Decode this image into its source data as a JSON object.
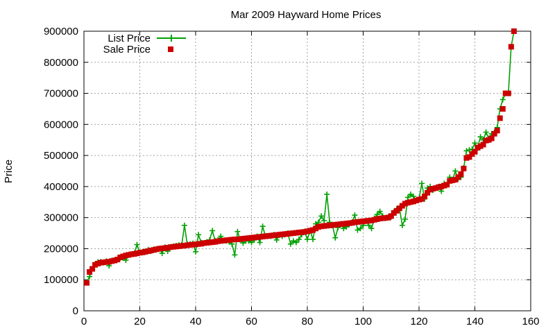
{
  "chart_data": {
    "type": "line",
    "title": "Mar 2009 Hayward Home Prices",
    "xlabel": "",
    "ylabel": "Price",
    "xlim": [
      0,
      160
    ],
    "ylim": [
      0,
      900000
    ],
    "xticks": [
      0,
      20,
      40,
      60,
      80,
      100,
      120,
      140,
      160
    ],
    "yticks": [
      0,
      100000,
      200000,
      300000,
      400000,
      500000,
      600000,
      700000,
      800000,
      900000
    ],
    "grid": true,
    "legend": "top-left",
    "series": [
      {
        "name": "List Price",
        "kind": "line-with-plus",
        "color": "#00a000",
        "x": [
          1,
          2,
          3,
          4,
          5,
          6,
          7,
          8,
          9,
          10,
          11,
          12,
          13,
          14,
          15,
          16,
          17,
          18,
          19,
          20,
          21,
          22,
          23,
          24,
          25,
          26,
          27,
          28,
          29,
          30,
          31,
          32,
          33,
          34,
          35,
          36,
          37,
          38,
          39,
          40,
          41,
          42,
          43,
          44,
          45,
          46,
          47,
          48,
          49,
          50,
          51,
          52,
          53,
          54,
          55,
          56,
          57,
          58,
          59,
          60,
          61,
          62,
          63,
          64,
          65,
          66,
          67,
          68,
          69,
          70,
          71,
          72,
          73,
          74,
          75,
          76,
          77,
          78,
          79,
          80,
          81,
          82,
          83,
          84,
          85,
          86,
          87,
          88,
          89,
          90,
          91,
          92,
          93,
          94,
          95,
          96,
          97,
          98,
          99,
          100,
          101,
          102,
          103,
          104,
          105,
          106,
          107,
          108,
          109,
          110,
          111,
          112,
          113,
          114,
          115,
          116,
          117,
          118,
          119,
          120,
          121,
          122,
          123,
          124,
          125,
          126,
          127,
          128,
          129,
          130,
          131,
          132,
          133,
          134,
          135,
          136,
          137,
          138,
          139,
          140,
          141,
          142,
          143,
          144,
          145,
          146,
          147,
          148,
          149,
          150,
          151,
          152,
          153,
          154
        ],
        "values": [
          92000,
          110000,
          135000,
          150000,
          157000,
          158000,
          155000,
          160000,
          145000,
          162000,
          163000,
          165000,
          170000,
          170000,
          163000,
          180000,
          182000,
          185000,
          213000,
          188000,
          190000,
          192000,
          197000,
          192000,
          198000,
          198000,
          200000,
          185000,
          205000,
          192000,
          205000,
          208000,
          210000,
          212000,
          212000,
          275000,
          215000,
          215000,
          217000,
          190000,
          245000,
          220000,
          218000,
          222000,
          228000,
          258000,
          225000,
          228000,
          240000,
          226000,
          225000,
          222000,
          215000,
          180000,
          255000,
          228000,
          218000,
          225000,
          225000,
          220000,
          228000,
          240000,
          220000,
          272000,
          240000,
          240000,
          240000,
          245000,
          228000,
          243000,
          240000,
          245000,
          250000,
          215000,
          225000,
          220000,
          230000,
          245000,
          255000,
          230000,
          258000,
          230000,
          280000,
          285000,
          305000,
          290000,
          375000,
          285000,
          275000,
          235000,
          268000,
          280000,
          265000,
          270000,
          278000,
          285000,
          308000,
          260000,
          265000,
          275000,
          290000,
          275000,
          265000,
          298000,
          310000,
          320000,
          305000,
          298000,
          302000,
          302000,
          318000,
          328000,
          330000,
          275000,
          295000,
          365000,
          375000,
          368000,
          355000,
          360000,
          410000,
          360000,
          395000,
          400000,
          388000,
          395000,
          400000,
          385000,
          410000,
          405000,
          430000,
          420000,
          450000,
          425000,
          430000,
          460000,
          515000,
          518000,
          520000,
          540000,
          525000,
          560000,
          550000,
          575000,
          555000,
          570000,
          575000,
          590000,
          650000,
          680000,
          700000,
          700000,
          850000,
          900000
        ]
      },
      {
        "name": "Sale Price",
        "kind": "points-square",
        "color": "#cc0000",
        "x": [
          1,
          2,
          3,
          4,
          5,
          6,
          7,
          8,
          9,
          10,
          11,
          12,
          13,
          14,
          15,
          16,
          17,
          18,
          19,
          20,
          21,
          22,
          23,
          24,
          25,
          26,
          27,
          28,
          29,
          30,
          31,
          32,
          33,
          34,
          35,
          36,
          37,
          38,
          39,
          40,
          41,
          42,
          43,
          44,
          45,
          46,
          47,
          48,
          49,
          50,
          51,
          52,
          53,
          54,
          55,
          56,
          57,
          58,
          59,
          60,
          61,
          62,
          63,
          64,
          65,
          66,
          67,
          68,
          69,
          70,
          71,
          72,
          73,
          74,
          75,
          76,
          77,
          78,
          79,
          80,
          81,
          82,
          83,
          84,
          85,
          86,
          87,
          88,
          89,
          90,
          91,
          92,
          93,
          94,
          95,
          96,
          97,
          98,
          99,
          100,
          101,
          102,
          103,
          104,
          105,
          106,
          107,
          108,
          109,
          110,
          111,
          112,
          113,
          114,
          115,
          116,
          117,
          118,
          119,
          120,
          121,
          122,
          123,
          124,
          125,
          126,
          127,
          128,
          129,
          130,
          131,
          132,
          133,
          134,
          135,
          136,
          137,
          138,
          139,
          140,
          141,
          142,
          143,
          144,
          145,
          146,
          147,
          148,
          149,
          150,
          151,
          152,
          153,
          154
        ],
        "values": [
          90000,
          125000,
          135000,
          148000,
          152000,
          155000,
          156000,
          157000,
          158000,
          160000,
          162000,
          165000,
          172000,
          175000,
          178000,
          180000,
          182000,
          183000,
          185000,
          187000,
          188000,
          190000,
          192000,
          194000,
          196000,
          198000,
          200000,
          201000,
          202000,
          203000,
          205000,
          206000,
          207000,
          208000,
          209000,
          210000,
          211000,
          212000,
          213000,
          214000,
          215000,
          216000,
          218000,
          219000,
          220000,
          221000,
          222000,
          224000,
          225000,
          226000,
          227000,
          228000,
          229000,
          230000,
          230000,
          231000,
          232000,
          233000,
          234000,
          235000,
          236000,
          237000,
          238000,
          239000,
          240000,
          241000,
          242000,
          243000,
          244000,
          245000,
          246000,
          247000,
          248000,
          249000,
          250000,
          251000,
          252000,
          253000,
          254000,
          256000,
          258000,
          260000,
          265000,
          270000,
          272000,
          273000,
          274000,
          275000,
          276000,
          277000,
          278000,
          279000,
          280000,
          281000,
          282000,
          283000,
          285000,
          286000,
          287000,
          288000,
          289000,
          290000,
          291000,
          293000,
          295000,
          297000,
          298000,
          299000,
          300000,
          305000,
          315000,
          322000,
          330000,
          338000,
          345000,
          348000,
          350000,
          352000,
          355000,
          358000,
          360000,
          368000,
          380000,
          390000,
          393000,
          395000,
          398000,
          400000,
          403000,
          406000,
          418000,
          420000,
          422000,
          430000,
          440000,
          458000,
          492000,
          495000,
          505000,
          512000,
          525000,
          530000,
          535000,
          548000,
          550000,
          555000,
          570000,
          580000,
          620000,
          650000,
          700000,
          700000,
          850000,
          900000
        ]
      }
    ]
  }
}
